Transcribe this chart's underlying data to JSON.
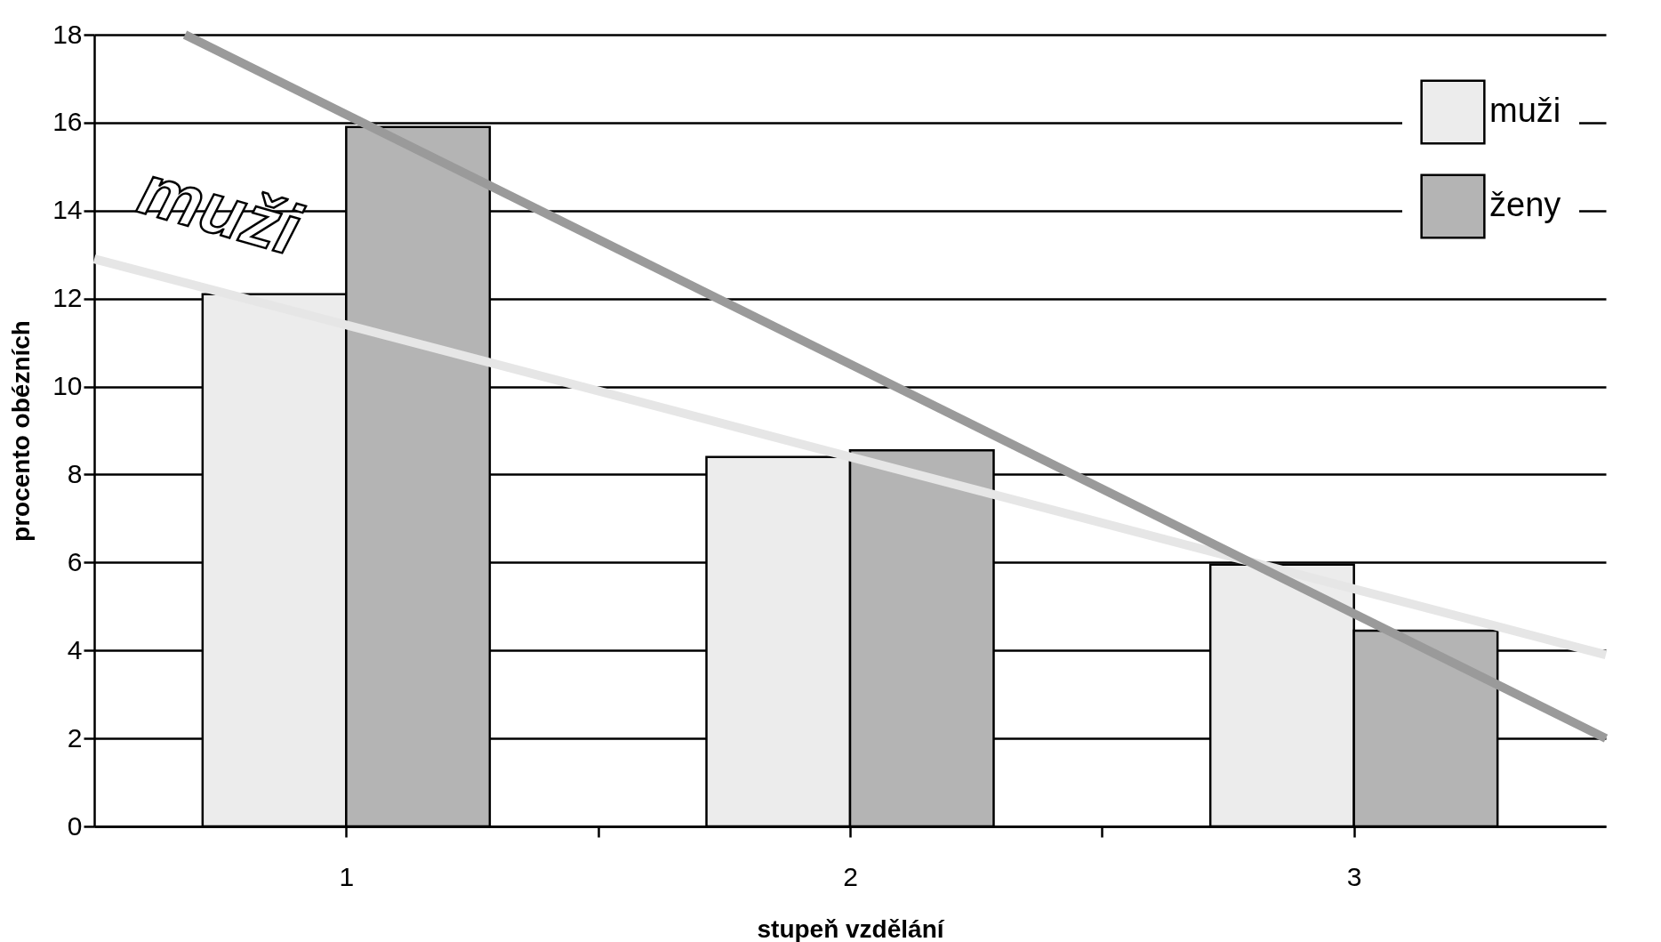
{
  "chart_data": {
    "type": "bar",
    "xlabel": "stupeň vzdělání",
    "ylabel": "procento obézních",
    "x": [
      1,
      2,
      3
    ],
    "xlim": [
      0.5,
      3.5
    ],
    "xticks": [
      1,
      {
        "value": 1.5,
        "label": null
      },
      2,
      {
        "value": 2.5,
        "label": null
      },
      3
    ],
    "ylim": [
      0,
      18
    ],
    "yticks": [
      0,
      2,
      4,
      6,
      8,
      10,
      12,
      14,
      16,
      18
    ],
    "grid": "y",
    "legend": "top right",
    "series": [
      {
        "name": "muži",
        "color": "#ececec",
        "values": [
          12.1,
          8.4,
          5.95
        ]
      },
      {
        "name": "ženy",
        "color": "#b4b4b4",
        "values": [
          15.9,
          8.55,
          4.45
        ]
      },
      {
        "type": "line",
        "color": "#e6e6e6",
        "x": [
          0.5,
          3.5
        ],
        "values": [
          12.9,
          3.9
        ]
      },
      {
        "type": "line",
        "color": "#9a9a9a",
        "x": [
          0.68,
          3.5
        ],
        "values": [
          18,
          2.0
        ]
      }
    ],
    "annotations": [
      "muži"
    ]
  }
}
